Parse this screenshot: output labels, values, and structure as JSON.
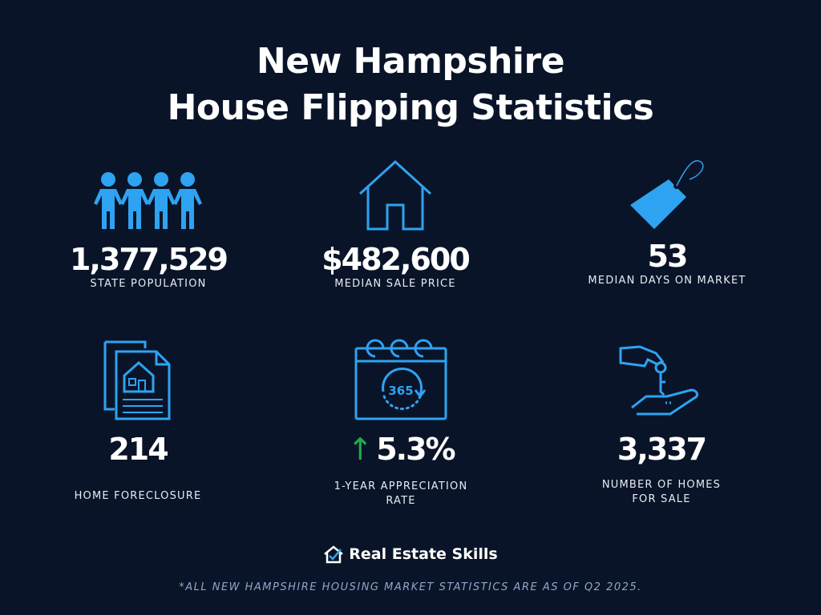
{
  "title": {
    "line1": "New Hampshire",
    "line2": "House Flipping Statistics"
  },
  "stats": [
    {
      "value": "1,377,529",
      "label": "STATE POPULATION",
      "icon": "people-icon"
    },
    {
      "value": "$482,600",
      "label": "MEDIAN SALE PRICE",
      "icon": "house-icon"
    },
    {
      "value": "53",
      "label": "MEDIAN DAYS ON MARKET",
      "icon": "price-tag-icon"
    },
    {
      "value": "214",
      "label": "HOME FORECLOSURE",
      "icon": "foreclosure-document-icon"
    },
    {
      "value": "5.3%",
      "label": "1-YEAR APPRECIATION",
      "label2": "RATE",
      "icon": "calendar-365-icon",
      "trend": "up"
    },
    {
      "value": "3,337",
      "label": "NUMBER OF HOMES",
      "label2": "FOR SALE",
      "icon": "hand-key-icon"
    }
  ],
  "calendar_text": "365",
  "brand": "Real Estate Skills",
  "footnote": "*ALL NEW HAMPSHIRE HOUSING MARKET STATISTICS ARE AS OF Q2 2025.",
  "colors": {
    "background": "#0a1428",
    "icon": "#2ea3f2",
    "trend_up": "#1faa4f"
  }
}
